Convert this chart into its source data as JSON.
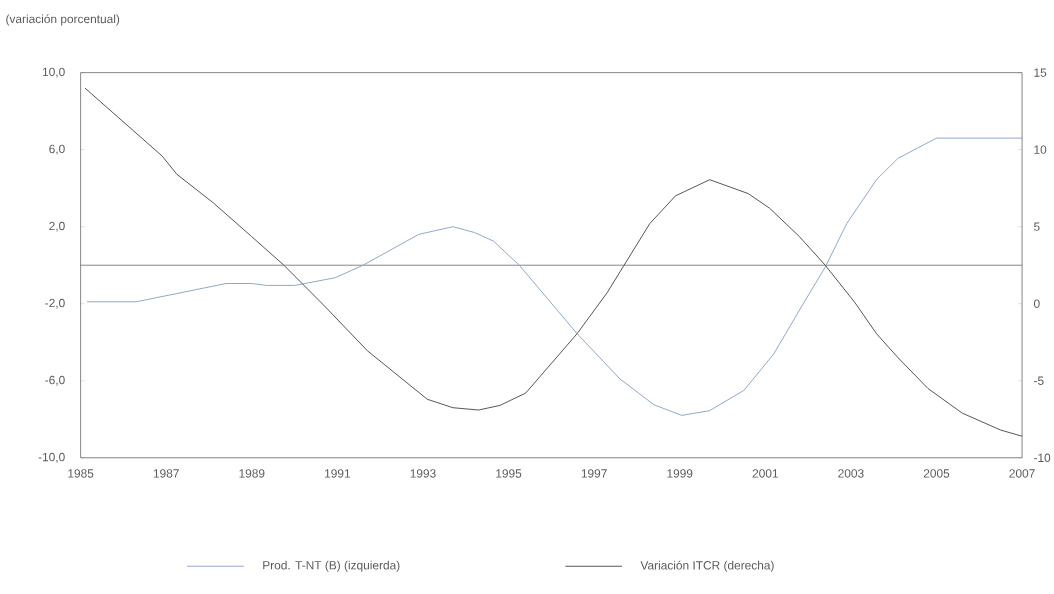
{
  "chart_data": {
    "type": "line",
    "ylabel": "(variación porcentual)",
    "xlim": [
      1985,
      2007
    ],
    "xticks": [
      1985,
      1987,
      1989,
      1991,
      1993,
      1995,
      1997,
      1999,
      2001,
      2003,
      2005,
      2007
    ],
    "ylim": [
      -10,
      10
    ],
    "yticks": [
      {
        "value": -10,
        "label": "-10,0"
      },
      {
        "value": -6,
        "label": "-6,0"
      },
      {
        "value": -2,
        "label": "-2,0"
      },
      {
        "value": 2,
        "label": "2,0"
      },
      {
        "value": 6,
        "label": "6,0"
      },
      {
        "value": 10,
        "label": "10,0"
      }
    ],
    "y2lim": [
      -10,
      15
    ],
    "y2ticks": [
      -10,
      -5,
      0,
      5,
      10,
      15
    ],
    "ref_lines": [
      {
        "axis": "y",
        "value": 0,
        "color": "#666666"
      }
    ],
    "legend": "bottom",
    "grid": false,
    "line_style": "solid",
    "series": [
      {
        "name": "Prod. T-NT (B) (izquierda)",
        "color": "#8fa8c8",
        "axis": "y",
        "x": [
          1985.15,
          1986.3,
          1988.4,
          1989.0,
          1989.35,
          1990.0,
          1990.95,
          1991.6,
          1992.9,
          1993.7,
          1994.2,
          1994.65,
          1995.25,
          1996.6,
          1997.6,
          1998.4,
          1999.05,
          1999.7,
          2000.5,
          2001.2,
          2001.9,
          2002.4,
          2002.9,
          2003.6,
          2004.1,
          2005.0,
          2005.5,
          2007.0
        ],
        "values": [
          -1.9,
          -1.9,
          -0.95,
          -0.95,
          -1.05,
          -1.05,
          -0.65,
          0.0,
          1.6,
          2.0,
          1.7,
          1.25,
          0.0,
          -3.55,
          -5.9,
          -7.25,
          -7.8,
          -7.55,
          -6.5,
          -4.6,
          -1.95,
          -0.1,
          2.15,
          4.45,
          5.55,
          6.6,
          6.6,
          6.6
        ]
      },
      {
        "name": "Variación ITCR (derecha)",
        "color": "#555555",
        "axis": "y2",
        "x": [
          1985.1,
          1986.9,
          1987.25,
          1988.1,
          1989.0,
          1989.75,
          1990.7,
          1991.7,
          1992.3,
          1993.1,
          1993.7,
          1994.3,
          1994.8,
          1995.4,
          1996.6,
          1997.3,
          1997.7,
          1998.3,
          1998.9,
          1999.7,
          2000.6,
          2001.1,
          2001.8,
          2002.4,
          2003.1,
          2003.6,
          2004.1,
          2004.8,
          2005.6,
          2006.5,
          2007.0
        ],
        "values": [
          14.0,
          9.6,
          8.4,
          6.55,
          4.35,
          2.5,
          -0.15,
          -3.05,
          -4.4,
          -6.2,
          -6.75,
          -6.9,
          -6.6,
          -5.8,
          -1.95,
          0.7,
          2.5,
          5.2,
          7.0,
          8.05,
          7.15,
          6.2,
          4.35,
          2.5,
          0.05,
          -1.95,
          -3.5,
          -5.5,
          -7.1,
          -8.2,
          -8.6
        ]
      }
    ]
  }
}
